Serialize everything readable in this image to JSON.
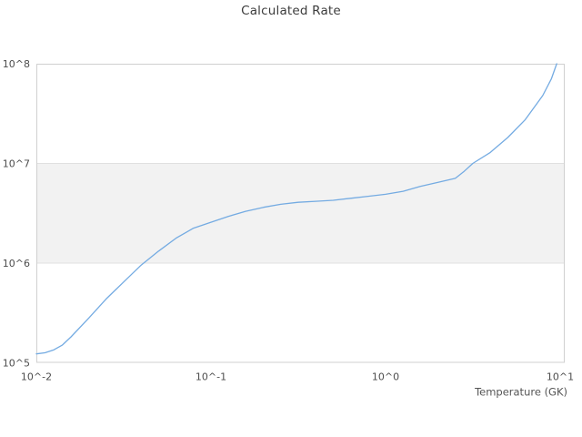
{
  "chart_data": {
    "type": "line",
    "title": "Calculated Rate",
    "xlabel": "Temperature (GK)",
    "ylabel": "",
    "x_scale": "log",
    "y_scale": "log",
    "x_range_log10": [
      -2,
      1.026
    ],
    "y_range_log10": [
      5,
      8
    ],
    "grid": "horizontal-only",
    "legend": "none",
    "x_ticks": [
      {
        "value_log10": -2,
        "label": "10^-2"
      },
      {
        "value_log10": -1,
        "label": "10^-1"
      },
      {
        "value_log10": 0,
        "label": "10^0"
      },
      {
        "value_log10": 1,
        "label": "10^1"
      }
    ],
    "y_ticks": [
      {
        "value_log10": 5,
        "label": "10^5"
      },
      {
        "value_log10": 6,
        "label": "10^6"
      },
      {
        "value_log10": 7,
        "label": "10^7"
      },
      {
        "value_log10": 8,
        "label": "10^8"
      }
    ],
    "alternate_band": {
      "from_log10": 6,
      "to_log10": 7
    },
    "series": [
      {
        "name": "calculated rate",
        "x_gk": [
          0.01,
          0.0112,
          0.0126,
          0.0141,
          0.0158,
          0.02,
          0.0251,
          0.0316,
          0.0398,
          0.0501,
          0.0631,
          0.0794,
          0.1,
          0.126,
          0.158,
          0.2,
          0.251,
          0.316,
          0.398,
          0.501,
          0.631,
          0.794,
          1.0,
          1.26,
          1.58,
          2.0,
          2.51,
          2.82,
          3.16,
          3.98,
          5.01,
          6.31,
          7.94,
          8.91,
          9.55
        ],
        "rate": [
          123000,
          126000,
          135000,
          151000,
          182000,
          282000,
          437000,
          646000,
          955000,
          1320000,
          1780000,
          2240000,
          2570000,
          2950000,
          3310000,
          3630000,
          3890000,
          4070000,
          4170000,
          4270000,
          4470000,
          4680000,
          4900000,
          5250000,
          5890000,
          6460000,
          7080000,
          8320000,
          10000000,
          12900000,
          18200000,
          27500000,
          47900000,
          70800000,
          100000000
        ]
      }
    ]
  },
  "colors": {
    "line": "#74abe2",
    "band_fill": "#f2f2f2",
    "gridline": "#e0e0e0",
    "plot_border": "#d0d0d0",
    "title_text": "#3c3c3c",
    "tick_text": "#4d4d4d",
    "axis_title_text": "#555555",
    "background": "#ffffff"
  }
}
